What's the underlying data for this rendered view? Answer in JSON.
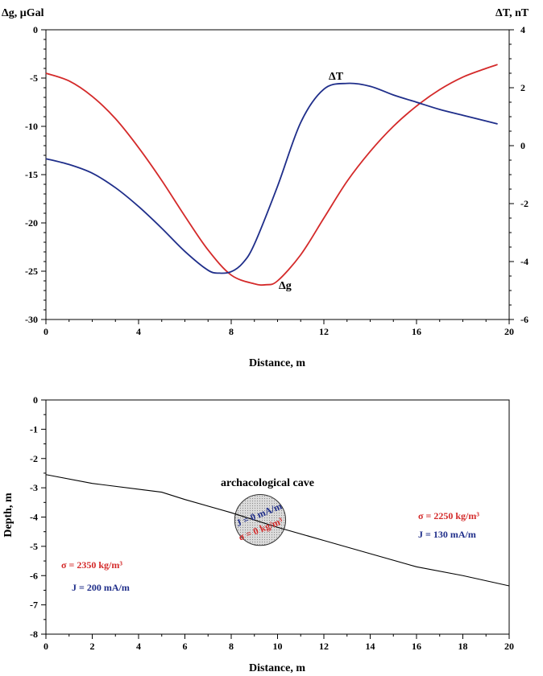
{
  "chart_data": [
    {
      "type": "line",
      "xlabel": "Distance, m",
      "ylabel_left": "Δg, μGal",
      "ylabel_right": "ΔT, nT",
      "xlim": [
        0,
        20
      ],
      "ylim_left": [
        -30,
        0
      ],
      "ylim_right": [
        -6,
        4
      ],
      "xticks": [
        0,
        4,
        8,
        12,
        16,
        20
      ],
      "yticks_left": [
        0,
        -5,
        -10,
        -15,
        -20,
        -25,
        -30
      ],
      "yticks_right": [
        4,
        2,
        0,
        -2,
        -4,
        -6
      ],
      "grid": false,
      "series": [
        {
          "name": "Δg",
          "axis": "left",
          "color": "#d42a2a",
          "x": [
            0,
            1,
            2,
            3,
            4,
            5,
            6,
            7,
            8,
            9,
            9.5,
            10,
            11,
            12,
            13,
            14,
            15,
            16,
            17,
            18,
            19,
            19.5
          ],
          "y": [
            -4.5,
            -5.3,
            -6.9,
            -9.2,
            -12.2,
            -15.6,
            -19.3,
            -22.8,
            -25.4,
            -26.3,
            -26.4,
            -26.0,
            -23.3,
            -19.5,
            -15.7,
            -12.6,
            -10.0,
            -7.9,
            -6.2,
            -4.9,
            -4.0,
            -3.6
          ]
        },
        {
          "name": "ΔT",
          "axis": "right",
          "color": "#1f2e8a",
          "x": [
            0,
            1,
            2,
            3,
            4,
            5,
            6,
            7,
            7.5,
            8,
            8.5,
            9,
            10,
            11,
            12,
            13,
            14,
            15,
            16,
            17,
            18,
            19,
            19.5
          ],
          "y": [
            -0.45,
            -0.65,
            -0.95,
            -1.45,
            -2.1,
            -2.85,
            -3.65,
            -4.3,
            -4.4,
            -4.35,
            -4.05,
            -3.4,
            -1.4,
            0.8,
            1.95,
            2.15,
            2.05,
            1.75,
            1.5,
            1.25,
            1.05,
            0.85,
            0.75
          ]
        }
      ],
      "annotations": [
        {
          "text": "ΔT",
          "color": "#000000"
        },
        {
          "text": "Δg",
          "color": "#000000"
        }
      ]
    },
    {
      "type": "line",
      "xlabel": "Distance, m",
      "ylabel": "Depth, m",
      "xlim": [
        0,
        20
      ],
      "ylim": [
        -8,
        0
      ],
      "xticks": [
        0,
        2,
        4,
        6,
        8,
        10,
        12,
        14,
        16,
        18,
        20
      ],
      "yticks": [
        0,
        -1,
        -2,
        -3,
        -4,
        -5,
        -6,
        -7,
        -8
      ],
      "grid": false,
      "series": [
        {
          "name": "boundary",
          "color": "#000000",
          "x": [
            0,
            2,
            4,
            5,
            6,
            8,
            10,
            12,
            14,
            16,
            18,
            20
          ],
          "y": [
            -2.55,
            -2.85,
            -3.05,
            -3.15,
            -3.4,
            -3.85,
            -4.35,
            -4.8,
            -5.25,
            -5.7,
            -6.0,
            -6.35
          ]
        }
      ],
      "cave": {
        "center": [
          9.25,
          -4.1
        ],
        "radius_m": 1.1,
        "fill": "#d8d8d8"
      },
      "labels": {
        "cave_title": "archacological cave",
        "cave_J": "J = 0 mA/m",
        "cave_sigma": "σ = 0 kg/m³",
        "right_sigma": "σ = 2250 kg/m³",
        "right_J": "J = 130 mA/m",
        "left_sigma": "σ = 2350 kg/m³",
        "left_J": "J = 200 mA/m"
      },
      "colors": {
        "sigma": "#d42a2a",
        "J": "#1f2e8a"
      }
    }
  ]
}
